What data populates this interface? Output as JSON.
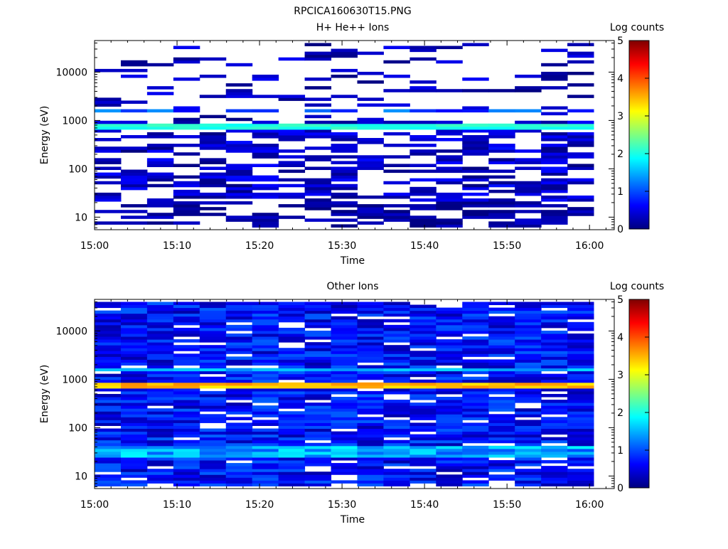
{
  "figure": {
    "title": "RPCICA160630T15.PNG"
  },
  "colors": {
    "colormap": [
      "#00007f",
      "#0000ff",
      "#007fff",
      "#00ffff",
      "#7fff7f",
      "#ffff00",
      "#ff7f00",
      "#ff0000",
      "#7f0000"
    ],
    "empty": "#ffffff",
    "axes": "#000000"
  },
  "chart_data": [
    {
      "type": "heatmap",
      "title": "H+ He++ Ions",
      "xlabel": "Time",
      "ylabel": "Energy (eV)",
      "x_ticks": [
        "15:00",
        "15:10",
        "15:20",
        "15:30",
        "15:40",
        "15:50",
        "16:00"
      ],
      "x_range_minutes": [
        0,
        63
      ],
      "y_scale": "log",
      "y_range": [
        5.5,
        45000
      ],
      "y_tick_labels": [
        "10",
        "100",
        "1000",
        "10000"
      ],
      "y_tick_values": [
        10,
        100,
        1000,
        10000
      ],
      "colorbar": {
        "label": "Log counts",
        "ticks": [
          "0",
          "1",
          "2",
          "3",
          "4",
          "5"
        ],
        "range": [
          0,
          5
        ]
      },
      "grid": false,
      "dominant_feature": {
        "energy_range_ev": [
          640,
          860
        ],
        "log_counts": 2.0,
        "description": "persistent band"
      },
      "time_bins": 19
    },
    {
      "type": "heatmap",
      "title": "Other Ions",
      "xlabel": "Time",
      "ylabel": "Energy (eV)",
      "x_ticks": [
        "15:00",
        "15:10",
        "15:20",
        "15:30",
        "15:40",
        "15:50",
        "16:00"
      ],
      "x_range_minutes": [
        0,
        63
      ],
      "y_scale": "log",
      "y_range": [
        5.5,
        45000
      ],
      "y_tick_labels": [
        "10",
        "100",
        "1000",
        "10000"
      ],
      "y_tick_values": [
        10,
        100,
        1000,
        10000
      ],
      "colorbar": {
        "label": "Log counts",
        "ticks": [
          "0",
          "1",
          "2",
          "3",
          "4",
          "5"
        ],
        "range": [
          0,
          5
        ]
      },
      "grid": false,
      "dominant_feature": {
        "energy_range_ev": [
          640,
          860
        ],
        "log_counts": 3.5,
        "description": "persistent band"
      },
      "time_bins": 19
    }
  ]
}
